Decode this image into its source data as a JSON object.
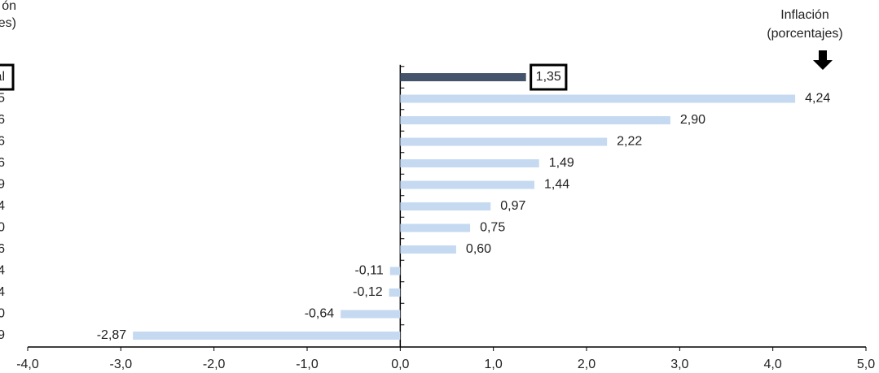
{
  "chart_data": {
    "type": "hbar",
    "y_axis_label": [
      "ón",
      "es)"
    ],
    "annotation": [
      "Inflación",
      "(porcentajes)"
    ],
    "categories": [
      "al",
      "5",
      "6",
      "6",
      "6",
      "9",
      "4",
      "0",
      "6",
      "4",
      "4",
      "0",
      "9"
    ],
    "values": [
      1.35,
      4.24,
      2.9,
      2.22,
      1.49,
      1.44,
      0.97,
      0.75,
      0.6,
      -0.11,
      -0.12,
      -0.64,
      -2.87
    ],
    "value_labels": [
      "1,35",
      "4,24",
      "2,90",
      "2,22",
      "1,49",
      "1,44",
      "0,97",
      "0,75",
      "0,60",
      "-0,11",
      "-0,12",
      "-0,64",
      "-2,87"
    ],
    "colors": [
      "#44546a",
      "#c5d9f1",
      "#c5d9f1",
      "#c5d9f1",
      "#c5d9f1",
      "#c5d9f1",
      "#c5d9f1",
      "#c5d9f1",
      "#c5d9f1",
      "#c5d9f1",
      "#c5d9f1",
      "#c5d9f1",
      "#c5d9f1"
    ],
    "xlim": [
      -4,
      5
    ],
    "xticks": [
      {
        "value": -4,
        "label": "-4,0"
      },
      {
        "value": -3,
        "label": "-3,0"
      },
      {
        "value": -2,
        "label": "-2,0"
      },
      {
        "value": -1,
        "label": "-1,0"
      },
      {
        "value": 0,
        "label": "0,0"
      },
      {
        "value": 1,
        "label": "1,0"
      },
      {
        "value": 2,
        "label": "2,0"
      },
      {
        "value": 3,
        "label": "3,0"
      },
      {
        "value": 4,
        "label": "4,0"
      },
      {
        "value": 5,
        "label": "5,0"
      }
    ]
  }
}
